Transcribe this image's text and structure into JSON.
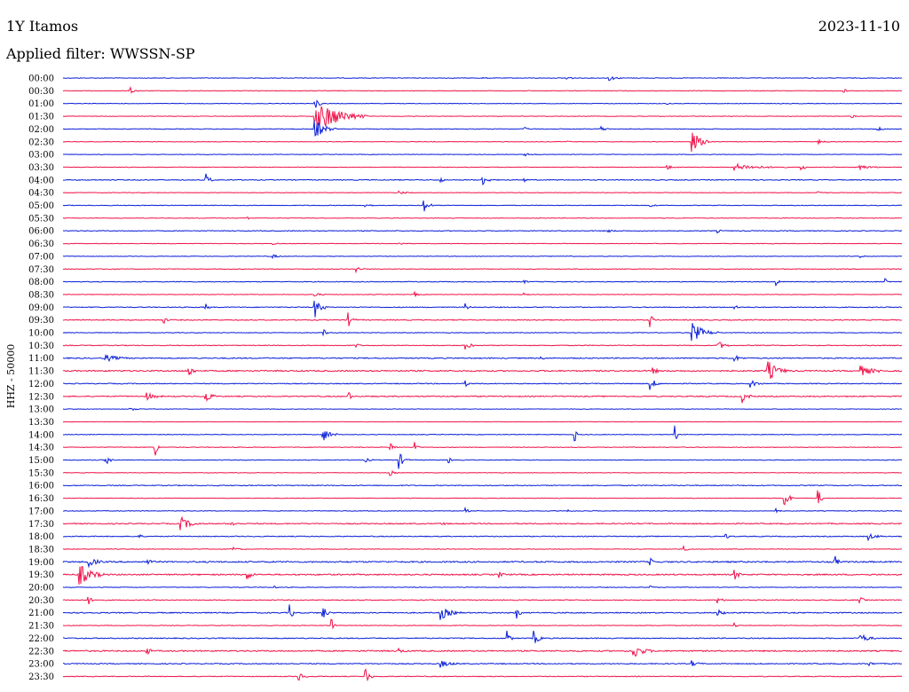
{
  "header": {
    "station": "1Y Itamos",
    "date": "2023-11-10",
    "filter": "Applied filter: WWSSN-SP"
  },
  "colors": {
    "even_row": "#0b1fd8",
    "odd_row": "#f0144a"
  },
  "chart_data": {
    "type": "line",
    "title": "1Y Itamos",
    "ylabel": "HHZ - 50000",
    "row_interval_minutes": 30,
    "colors": [
      "#0b1fd8",
      "#f0144a"
    ],
    "rows": [
      {
        "label": "00:00",
        "noise": 0.6,
        "events": [
          [
            0.65,
            0.9,
            5
          ],
          [
            0.6,
            1.0,
            3
          ],
          [
            0.5,
            0.1,
            4
          ]
        ]
      },
      {
        "label": "00:30",
        "noise": 0.5,
        "events": [
          [
            0.08,
            1.0,
            3
          ],
          [
            0.93,
            0.8,
            2
          ]
        ]
      },
      {
        "label": "01:00",
        "noise": 0.5,
        "events": [
          [
            0.3,
            1.5,
            4
          ],
          [
            0.72,
            0.2,
            2
          ]
        ]
      },
      {
        "label": "01:30",
        "noise": 0.5,
        "events": [
          [
            0.3,
            6.0,
            20
          ],
          [
            0.94,
            0.4,
            3
          ]
        ]
      },
      {
        "label": "02:00",
        "noise": 0.6,
        "events": [
          [
            0.3,
            3.0,
            8
          ],
          [
            0.64,
            0.9,
            4
          ],
          [
            0.97,
            0.8,
            4
          ],
          [
            0.55,
            0.6,
            2
          ]
        ]
      },
      {
        "label": "02:30",
        "noise": 0.5,
        "events": [
          [
            0.75,
            3.0,
            8
          ],
          [
            0.6,
            0.3,
            2
          ],
          [
            0.9,
            0.6,
            5
          ]
        ]
      },
      {
        "label": "03:00",
        "noise": 0.5,
        "events": [
          [
            0.55,
            0.4,
            6
          ]
        ]
      },
      {
        "label": "03:30",
        "noise": 0.5,
        "events": [
          [
            0.8,
            1.0,
            20
          ],
          [
            0.88,
            1.0,
            3
          ],
          [
            0.72,
            0.6,
            6
          ],
          [
            0.95,
            0.6,
            10
          ]
        ]
      },
      {
        "label": "04:00",
        "noise": 0.8,
        "events": [
          [
            0.17,
            2.0,
            3
          ],
          [
            0.5,
            1.5,
            4
          ],
          [
            0.45,
            0.8,
            2
          ],
          [
            0.55,
            0.5,
            2
          ]
        ]
      },
      {
        "label": "04:30",
        "noise": 0.5,
        "events": [
          [
            0.4,
            0.5,
            5
          ],
          [
            0.9,
            0.4,
            4
          ]
        ]
      },
      {
        "label": "05:00",
        "noise": 0.6,
        "events": [
          [
            0.43,
            2.0,
            4
          ],
          [
            0.36,
            0.6,
            4
          ],
          [
            0.7,
            0.4,
            3
          ]
        ]
      },
      {
        "label": "05:30",
        "noise": 0.5,
        "events": [
          [
            0.22,
            0.4,
            3
          ]
        ]
      },
      {
        "label": "06:00",
        "noise": 0.7,
        "events": [
          [
            0.78,
            0.5,
            2
          ],
          [
            0.65,
            0.4,
            3
          ]
        ]
      },
      {
        "label": "06:30",
        "noise": 0.5,
        "events": [
          [
            0.4,
            0.4,
            4
          ],
          [
            0.25,
            0.3,
            3
          ]
        ]
      },
      {
        "label": "07:00",
        "noise": 0.5,
        "events": [
          [
            0.25,
            0.6,
            4
          ],
          [
            0.6,
            0.4,
            3
          ],
          [
            0.95,
            0.5,
            2
          ]
        ]
      },
      {
        "label": "07:30",
        "noise": 0.6,
        "events": [
          [
            0.35,
            0.9,
            3
          ],
          [
            0.05,
            0.4,
            4
          ]
        ]
      },
      {
        "label": "08:00",
        "noise": 0.7,
        "events": [
          [
            0.85,
            1.0,
            2
          ],
          [
            0.98,
            0.8,
            2
          ],
          [
            0.55,
            0.5,
            2
          ]
        ]
      },
      {
        "label": "08:30",
        "noise": 0.5,
        "events": [
          [
            0.3,
            0.6,
            4
          ],
          [
            0.42,
            0.6,
            2
          ],
          [
            0.55,
            0.4,
            2
          ]
        ]
      },
      {
        "label": "09:00",
        "noise": 0.8,
        "events": [
          [
            0.3,
            3.0,
            5
          ],
          [
            0.17,
            1.0,
            2
          ],
          [
            0.48,
            1.0,
            2
          ],
          [
            0.8,
            0.6,
            3
          ]
        ]
      },
      {
        "label": "09:30",
        "noise": 0.9,
        "events": [
          [
            0.34,
            2.0,
            3
          ],
          [
            0.12,
            1.0,
            2
          ],
          [
            0.7,
            2.0,
            2
          ]
        ]
      },
      {
        "label": "10:00",
        "noise": 0.6,
        "events": [
          [
            0.75,
            3.0,
            10
          ],
          [
            0.31,
            1.0,
            3
          ],
          [
            0.5,
            0.6,
            2
          ]
        ]
      },
      {
        "label": "10:30",
        "noise": 0.7,
        "events": [
          [
            0.48,
            2.0,
            3
          ],
          [
            0.78,
            1.5,
            5
          ],
          [
            0.35,
            0.6,
            2
          ]
        ]
      },
      {
        "label": "11:00",
        "noise": 1.0,
        "events": [
          [
            0.05,
            1.0,
            10
          ],
          [
            0.8,
            1.0,
            4
          ],
          [
            0.57,
            0.5,
            2
          ]
        ]
      },
      {
        "label": "11:30",
        "noise": 1.2,
        "events": [
          [
            0.15,
            2.0,
            3
          ],
          [
            0.7,
            2.5,
            3
          ],
          [
            0.84,
            3.0,
            8
          ],
          [
            0.95,
            1.5,
            10
          ]
        ]
      },
      {
        "label": "12:00",
        "noise": 0.8,
        "events": [
          [
            0.7,
            2.0,
            4
          ],
          [
            0.48,
            0.8,
            2
          ],
          [
            0.82,
            1.0,
            5
          ]
        ]
      },
      {
        "label": "12:30",
        "noise": 1.0,
        "events": [
          [
            0.17,
            2.0,
            4
          ],
          [
            0.34,
            1.5,
            2
          ],
          [
            0.81,
            1.8,
            4
          ],
          [
            0.1,
            1.0,
            6
          ]
        ]
      },
      {
        "label": "13:00",
        "noise": 0.5,
        "events": [
          [
            0.08,
            0.5,
            5
          ]
        ]
      },
      {
        "label": "13:30",
        "noise": 0.4,
        "events": []
      },
      {
        "label": "14:00",
        "noise": 0.6,
        "events": [
          [
            0.31,
            2.0,
            6
          ],
          [
            0.61,
            2.5,
            1
          ],
          [
            0.73,
            2.5,
            1
          ]
        ]
      },
      {
        "label": "14:30",
        "noise": 0.6,
        "events": [
          [
            0.11,
            2.5,
            2
          ],
          [
            0.39,
            1.5,
            3
          ],
          [
            0.42,
            1.5,
            2
          ]
        ]
      },
      {
        "label": "15:00",
        "noise": 0.6,
        "events": [
          [
            0.05,
            2.0,
            3
          ],
          [
            0.4,
            2.5,
            4
          ],
          [
            0.36,
            0.6,
            4
          ],
          [
            0.46,
            0.8,
            2
          ]
        ]
      },
      {
        "label": "15:30",
        "noise": 0.5,
        "events": [
          [
            0.39,
            0.8,
            3
          ]
        ]
      },
      {
        "label": "16:00",
        "noise": 0.8,
        "events": []
      },
      {
        "label": "16:30",
        "noise": 0.5,
        "events": [
          [
            0.86,
            2.5,
            4
          ],
          [
            0.9,
            3.0,
            2
          ]
        ]
      },
      {
        "label": "17:00",
        "noise": 0.6,
        "events": [
          [
            0.48,
            0.8,
            2
          ],
          [
            0.6,
            0.8,
            2
          ],
          [
            0.85,
            0.8,
            2
          ]
        ]
      },
      {
        "label": "17:30",
        "noise": 1.0,
        "events": [
          [
            0.14,
            2.0,
            8
          ],
          [
            0.2,
            1.2,
            3
          ],
          [
            0.45,
            0.6,
            3
          ]
        ]
      },
      {
        "label": "18:00",
        "noise": 0.8,
        "events": [
          [
            0.09,
            0.8,
            2
          ],
          [
            0.79,
            1.0,
            2
          ],
          [
            0.96,
            1.0,
            6
          ]
        ]
      },
      {
        "label": "18:30",
        "noise": 0.6,
        "events": [
          [
            0.2,
            0.8,
            4
          ],
          [
            0.74,
            0.8,
            3
          ]
        ]
      },
      {
        "label": "19:00",
        "noise": 1.3,
        "events": [
          [
            0.03,
            1.5,
            6
          ],
          [
            0.92,
            2.0,
            2
          ],
          [
            0.1,
            1.0,
            3
          ],
          [
            0.7,
            1.0,
            2
          ]
        ]
      },
      {
        "label": "19:30",
        "noise": 1.2,
        "events": [
          [
            0.02,
            3.0,
            10
          ],
          [
            0.22,
            1.5,
            3
          ],
          [
            0.8,
            1.8,
            3
          ],
          [
            0.52,
            0.8,
            3
          ]
        ]
      },
      {
        "label": "20:00",
        "noise": 0.6,
        "events": [
          [
            0.25,
            0.6,
            2
          ],
          [
            0.7,
            0.5,
            2
          ]
        ]
      },
      {
        "label": "20:30",
        "noise": 0.8,
        "events": [
          [
            0.03,
            1.5,
            2
          ],
          [
            0.78,
            0.8,
            4
          ],
          [
            0.95,
            0.8,
            3
          ]
        ]
      },
      {
        "label": "21:00",
        "noise": 1.0,
        "events": [
          [
            0.27,
            3.0,
            2
          ],
          [
            0.31,
            2.0,
            3
          ],
          [
            0.45,
            2.0,
            8
          ],
          [
            0.54,
            2.5,
            2
          ],
          [
            0.78,
            1.0,
            4
          ]
        ]
      },
      {
        "label": "21:30",
        "noise": 0.6,
        "events": [
          [
            0.32,
            2.0,
            2
          ],
          [
            0.8,
            0.8,
            2
          ]
        ]
      },
      {
        "label": "22:00",
        "noise": 0.9,
        "events": [
          [
            0.53,
            2.0,
            2
          ],
          [
            0.56,
            2.5,
            4
          ],
          [
            0.95,
            1.5,
            6
          ]
        ]
      },
      {
        "label": "22:30",
        "noise": 1.2,
        "events": [
          [
            0.68,
            2.0,
            8
          ],
          [
            0.1,
            1.0,
            3
          ],
          [
            0.4,
            0.8,
            3
          ]
        ]
      },
      {
        "label": "23:00",
        "noise": 0.9,
        "events": [
          [
            0.45,
            1.0,
            8
          ],
          [
            0.75,
            0.8,
            4
          ],
          [
            0.96,
            0.6,
            3
          ]
        ]
      },
      {
        "label": "23:30",
        "noise": 0.7,
        "events": [
          [
            0.28,
            1.5,
            4
          ],
          [
            0.36,
            3.0,
            3
          ]
        ]
      }
    ]
  }
}
